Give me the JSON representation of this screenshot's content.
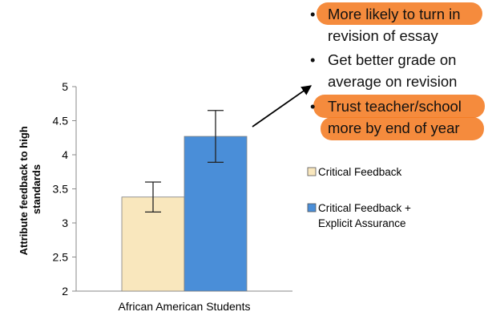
{
  "chart_data": {
    "type": "bar",
    "categories": [
      "African American Students"
    ],
    "series": [
      {
        "name": "Critical Feedback",
        "values": [
          3.38
        ],
        "error": [
          0.22
        ],
        "color": "#f9e7bd"
      },
      {
        "name": "Critical Feedback + Explicit Assurance",
        "values": [
          4.27
        ],
        "error": [
          0.38
        ],
        "color": "#4a8ed8"
      }
    ],
    "ylabel": "Attribute feedback to high standards",
    "ylabel_lines": [
      "Attribute feedback to high",
      "standards"
    ],
    "ylim": [
      2,
      5
    ],
    "yticks": [
      2,
      2.5,
      3,
      3.5,
      4,
      4.5,
      5
    ],
    "ytick_labels": [
      "2",
      "2.5",
      "3",
      "3.5",
      "4",
      "4.5",
      "5"
    ],
    "grid": false,
    "legend": [
      {
        "lines": [
          "Critical Feedback"
        ],
        "color": "#f9e7bd"
      },
      {
        "lines": [
          "Critical Feedback +",
          "Explicit Assurance"
        ],
        "color": "#4a8ed8"
      }
    ]
  },
  "annotations": {
    "bullets": [
      {
        "lines": [
          "More likely to turn in",
          "revision of essay"
        ],
        "highlight": [
          true,
          false
        ]
      },
      {
        "lines": [
          "Get better grade on",
          "average on revision"
        ],
        "highlight": [
          false,
          false
        ]
      },
      {
        "lines": [
          "Trust teacher/school",
          "more by end of year"
        ],
        "highlight": [
          true,
          true
        ]
      }
    ],
    "bullet_char": "•",
    "highlight_color": "#f47b22"
  }
}
